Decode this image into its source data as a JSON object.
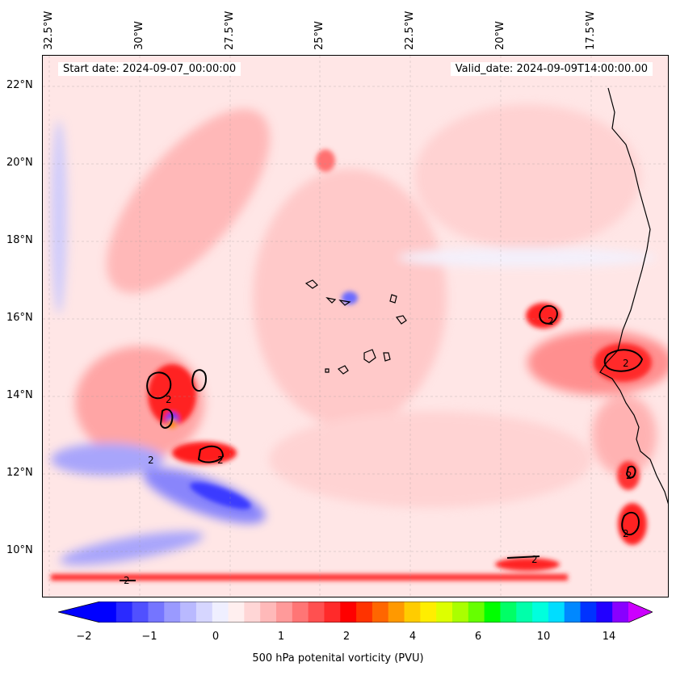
{
  "header": {
    "start_date": "Start date: 2024-09-07_00:00:00",
    "valid_date": "Valid_date: 2024-09-09T14:00:00.00"
  },
  "lon_labels": [
    "32.5°W",
    "30°W",
    "27.5°W",
    "25°W",
    "22.5°W",
    "20°W",
    "17.5°W"
  ],
  "lat_labels": [
    "22°N",
    "20°N",
    "18°N",
    "16°N",
    "14°N",
    "12°N",
    "10°N"
  ],
  "contour_label": "2",
  "colorbar": {
    "tick_labels": [
      "−2",
      "−1",
      "0",
      "1",
      "2",
      "4",
      "6",
      "10",
      "14"
    ],
    "title": "500 hPa potenital vorticity (PVU)",
    "colors": [
      "#0000ff",
      "#2a2aff",
      "#5050ff",
      "#7575ff",
      "#9a9aff",
      "#b9b9ff",
      "#d6d6ff",
      "#efefff",
      "#ffefef",
      "#ffd6d6",
      "#ffb9b9",
      "#ff9a9a",
      "#ff7575",
      "#ff5050",
      "#ff2a2a",
      "#ff0000",
      "#ff3300",
      "#ff6600",
      "#ff9900",
      "#ffcc00",
      "#ffee00",
      "#ddff00",
      "#aaff00",
      "#66ff00",
      "#00ff00",
      "#00ff66",
      "#00ffaa",
      "#00ffdd",
      "#00ddff",
      "#0088ff",
      "#0033ff",
      "#2200ff",
      "#8800ff"
    ]
  }
}
